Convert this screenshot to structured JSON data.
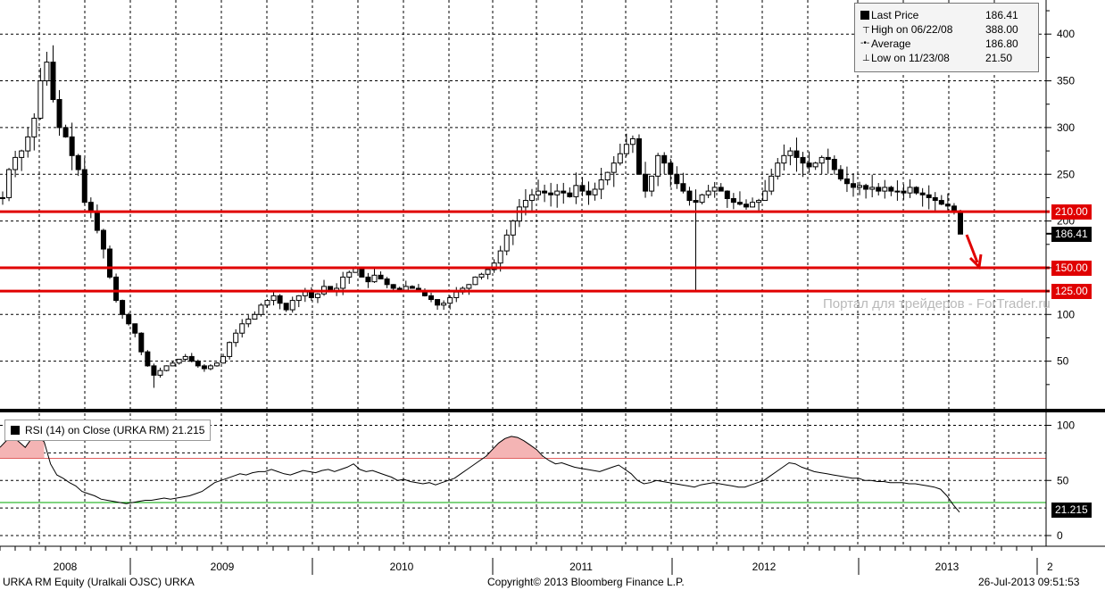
{
  "legend": {
    "items": [
      {
        "label": "Last Price",
        "value": "186.41",
        "icon": "filled-square-icon"
      },
      {
        "label": "High on 06/22/08",
        "value": "388.00",
        "icon": "high-marker-icon"
      },
      {
        "label": "Average",
        "value": "186.80",
        "icon": "average-marker-icon"
      },
      {
        "label": "Low on 11/23/08",
        "value": "21.50",
        "icon": "low-marker-icon"
      }
    ]
  },
  "tags": {
    "level_210": "210.00",
    "last_price": "186.41",
    "level_150": "150.00",
    "level_125": "125.00",
    "rsi_last": "21.215"
  },
  "rsi_label": "RSI (14) on Close (URKA RM) 21.215",
  "watermark": "Портал для трейдеров - ForTrader.ru",
  "footer": {
    "left": "URKA RM Equity (Uralkali OJSC) URKA",
    "center": "Copyright© 2013 Bloomberg Finance L.P.",
    "right": "26-Jul-2013 09:51:53"
  },
  "colors": {
    "support_lines": "#e00000",
    "rsi_overbought_fill": "#f4b4b4",
    "rsi_overbought_line": "#e06060",
    "rsi_oversold_line": "#00aa00"
  },
  "chart_data": [
    {
      "type": "candlestick",
      "ylim": [
        0,
        430
      ],
      "y_ticks": [
        50,
        100,
        150,
        200,
        250,
        300,
        350,
        400
      ],
      "x_labels": [
        "2008",
        "2009",
        "2010",
        "2011",
        "2012",
        "2013",
        "2"
      ],
      "horizontal_levels": [
        210,
        150,
        125
      ],
      "annotation": "red arrow pointing down",
      "series": [
        {
          "name": "Last Price",
          "weekly_close": [
            225,
            255,
            268,
            275,
            290,
            310,
            350,
            370,
            330,
            300,
            290,
            270,
            255,
            220,
            210,
            190,
            170,
            140,
            115,
            100,
            90,
            80,
            60,
            45,
            35,
            40,
            45,
            48,
            52,
            55,
            50,
            45,
            42,
            45,
            48,
            55,
            70,
            80,
            90,
            95,
            100,
            110,
            115,
            120,
            112,
            105,
            115,
            120,
            125,
            118,
            122,
            130,
            125,
            128,
            140,
            145,
            150,
            140,
            135,
            142,
            138,
            132,
            128,
            126,
            130,
            128,
            125,
            120,
            116,
            110,
            112,
            118,
            124,
            128,
            132,
            140,
            143,
            148,
            155,
            168,
            185,
            200,
            215,
            222,
            228,
            232,
            230,
            228,
            232,
            230,
            226,
            238,
            232,
            228,
            234,
            244,
            252,
            262,
            272,
            282,
            288,
            250,
            232,
            248,
            270,
            262,
            250,
            240,
            232,
            222,
            220,
            228,
            232,
            236,
            232,
            224,
            220,
            218,
            215,
            220,
            222,
            232,
            248,
            262,
            270,
            275,
            268,
            262,
            258,
            262,
            268,
            266,
            255,
            245,
            240,
            236,
            238,
            234,
            236,
            232,
            236,
            232,
            232,
            230,
            236,
            230,
            228,
            225,
            222,
            218,
            216,
            210,
            186
          ],
          "high": 388.0,
          "low": 21.5,
          "average": 186.8,
          "last": 186.41
        }
      ]
    },
    {
      "type": "line",
      "ylim": [
        -8,
        112
      ],
      "y_ticks": [
        0,
        50,
        100
      ],
      "overbought_level": 70,
      "oversold_level": 30,
      "series": [
        {
          "name": "RSI (14) on Close (URKA RM)",
          "values": [
            80,
            86,
            90,
            85,
            80,
            88,
            90,
            85,
            65,
            55,
            52,
            48,
            45,
            40,
            38,
            36,
            33,
            32,
            31,
            30,
            29,
            30,
            31,
            32,
            32,
            33,
            34,
            33,
            34,
            35,
            36,
            38,
            40,
            44,
            48,
            50,
            52,
            54,
            56,
            55,
            57,
            58,
            58,
            60,
            58,
            56,
            55,
            57,
            59,
            58,
            57,
            59,
            60,
            58,
            60,
            62,
            65,
            60,
            58,
            59,
            57,
            55,
            53,
            50,
            51,
            49,
            48,
            47,
            48,
            46,
            48,
            50,
            52,
            56,
            60,
            64,
            68,
            72,
            78,
            84,
            88,
            90,
            89,
            86,
            82,
            78,
            72,
            68,
            65,
            66,
            64,
            62,
            61,
            60,
            59,
            58,
            60,
            62,
            64,
            60,
            56,
            50,
            47,
            48,
            50,
            49,
            48,
            47,
            46,
            45,
            44,
            46,
            47,
            48,
            47,
            46,
            45,
            44,
            44,
            46,
            48,
            50,
            54,
            58,
            62,
            66,
            65,
            62,
            60,
            58,
            57,
            56,
            55,
            54,
            53,
            52,
            52,
            50,
            50,
            49,
            49,
            48,
            48,
            48,
            47,
            47,
            46,
            45,
            44,
            42,
            36,
            28,
            21.215
          ],
          "last": 21.215
        }
      ]
    }
  ]
}
